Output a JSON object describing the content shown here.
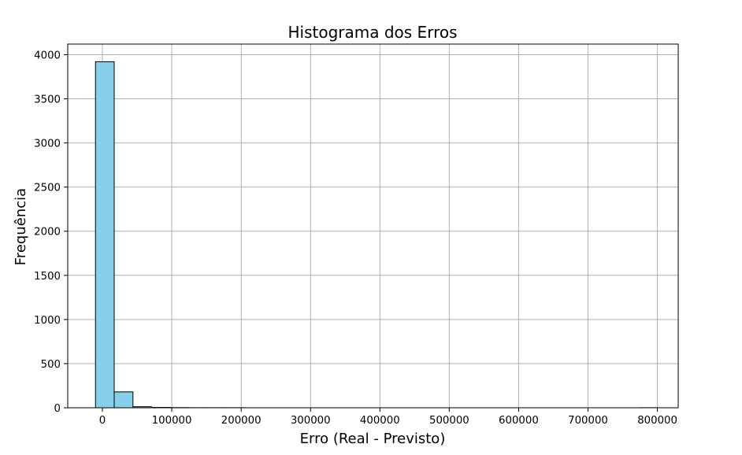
{
  "chart_data": {
    "type": "bar",
    "title": "Histograma dos Erros",
    "xlabel": "Erro (Real - Previsto)",
    "ylabel": "Frequência",
    "xlim": [
      -50000,
      830000
    ],
    "ylim": [
      0,
      4120
    ],
    "xticks": [
      0,
      100000,
      200000,
      300000,
      400000,
      500000,
      600000,
      700000,
      800000
    ],
    "yticks": [
      0,
      500,
      1000,
      1500,
      2000,
      2500,
      3000,
      3500,
      4000
    ],
    "grid": true,
    "bar_color": "#87CEEB",
    "edge_color": "#000000",
    "bins": {
      "start": -10000,
      "width": 27000,
      "counts": [
        3920,
        180,
        12,
        4,
        2,
        1,
        1,
        1,
        0,
        0,
        0,
        0,
        0,
        0,
        0,
        0,
        0,
        0,
        0,
        0,
        0,
        0,
        0,
        0,
        0,
        0,
        0,
        0,
        0,
        1
      ]
    }
  }
}
